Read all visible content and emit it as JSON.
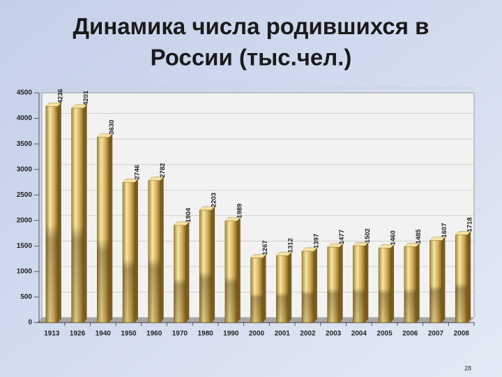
{
  "chart_data": {
    "type": "bar",
    "title": "Динамика числа родившихся в России (тыс.чел.)",
    "categories": [
      "1913",
      "1926",
      "1940",
      "1950",
      "1960",
      "1970",
      "1980",
      "1990",
      "2000",
      "2001",
      "2002",
      "2003",
      "2004",
      "2005",
      "2006",
      "2007",
      "2008"
    ],
    "values": [
      4236,
      4201,
      3630,
      2746,
      2782,
      1904,
      2203,
      1989,
      1267,
      1312,
      1397,
      1477,
      1502,
      1460,
      1485,
      1607,
      1718
    ],
    "color": "#d8b562",
    "ylim": [
      0,
      4500
    ],
    "yticks": [
      0,
      500,
      1000,
      1500,
      2000,
      2500,
      3000,
      3500,
      4000,
      4500
    ],
    "grid": true
  },
  "page_number": "28"
}
